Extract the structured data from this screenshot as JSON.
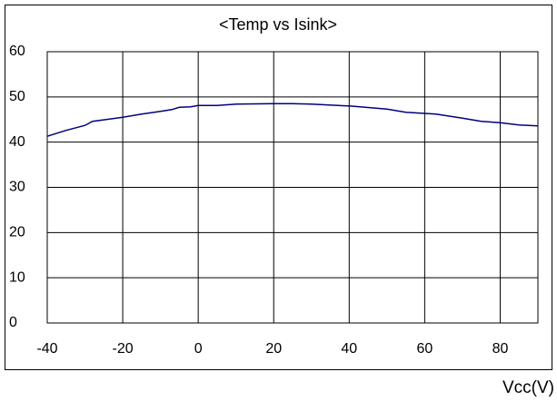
{
  "chart_data": {
    "type": "line",
    "title": "<Temp vs Isink>",
    "x_label": "Vcc(V)",
    "x": [
      -40,
      -35,
      -30,
      -28,
      -20,
      -15,
      -10,
      -7,
      -5,
      -2,
      0,
      5,
      10,
      20,
      25,
      30,
      40,
      50,
      55,
      63,
      70,
      75,
      80,
      85,
      90
    ],
    "series": [
      {
        "name": "Isink",
        "color": "#000080",
        "values": [
          41.3,
          42.6,
          43.7,
          44.6,
          45.5,
          46.2,
          46.8,
          47.2,
          47.7,
          47.8,
          48.1,
          48.1,
          48.4,
          48.5,
          48.5,
          48.4,
          48.0,
          47.3,
          46.6,
          46.2,
          45.3,
          44.6,
          44.3,
          43.8,
          43.6
        ]
      }
    ],
    "xlim": [
      -40,
      90
    ],
    "xticks": [
      -40,
      -20,
      0,
      20,
      40,
      60,
      80
    ],
    "ylim": [
      0,
      60
    ],
    "yticks": [
      0,
      10,
      20,
      30,
      40,
      50,
      60
    ],
    "grid": true
  }
}
